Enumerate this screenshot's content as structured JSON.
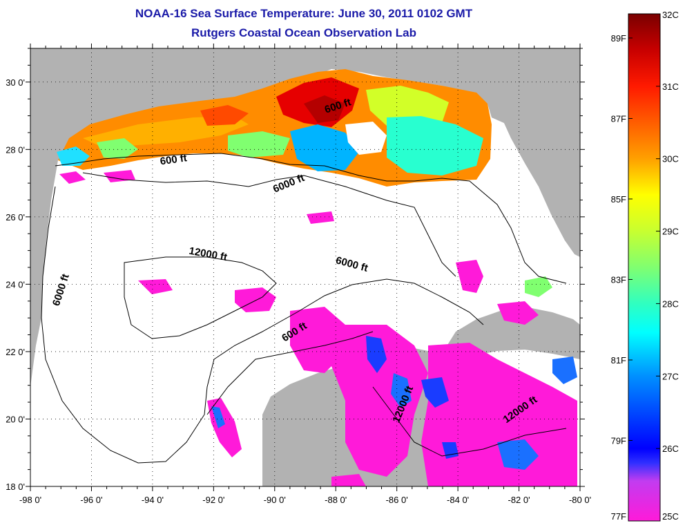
{
  "title": "NOAA-16 Sea Surface Temperature:  June 30, 2011 0102 GMT",
  "subtitle": "Rutgers Coastal Ocean Observation Lab",
  "map": {
    "lon_range": [
      -98,
      -80
    ],
    "lat_range": [
      18,
      31
    ],
    "lon_ticks": [
      -98,
      -96,
      -94,
      -92,
      -90,
      -88,
      -86,
      -84,
      -82,
      -80
    ],
    "lon_tick_labels": [
      "-98 0'",
      "-96 0'",
      "-94 0'",
      "-92 0'",
      "-90 0'",
      "-88 0'",
      "-86 0'",
      "-84 0'",
      "-82 0'",
      "-80 0'"
    ],
    "lat_ticks": [
      18,
      20,
      22,
      24,
      26,
      28,
      30
    ],
    "lat_tick_labels": [
      "18 0'",
      "20 0'",
      "22 0'",
      "24 0'",
      "26 0'",
      "28 0'",
      "30 0'"
    ],
    "gridlines": "dotted",
    "land_color": "#b2b2b2",
    "no_data_color": "#ffffff",
    "contour_labels": [
      {
        "text": "600 ft",
        "lon": -93.3,
        "lat": 27.6,
        "angle": -8
      },
      {
        "text": "600 ft",
        "lon": -87.9,
        "lat": 29.2,
        "angle": -18
      },
      {
        "text": "6000 ft",
        "lon": -89.5,
        "lat": 26.9,
        "angle": -22
      },
      {
        "text": "6000 ft",
        "lon": -96.9,
        "lat": 23.8,
        "angle": -72
      },
      {
        "text": "12000 ft",
        "lon": -92.2,
        "lat": 24.8,
        "angle": 10
      },
      {
        "text": "6000 ft",
        "lon": -87.5,
        "lat": 24.5,
        "angle": 15
      },
      {
        "text": "600 ft",
        "lon": -89.3,
        "lat": 22.5,
        "angle": -32
      },
      {
        "text": "12000 ft",
        "lon": -85.7,
        "lat": 20.4,
        "angle": -68
      },
      {
        "text": "12000 ft",
        "lon": -81.9,
        "lat": 20.2,
        "angle": -35
      }
    ]
  },
  "colorbar": {
    "min_c": 25,
    "max_c": 32,
    "celsius_ticks": [
      25,
      26,
      27,
      28,
      29,
      30,
      31,
      32
    ],
    "celsius_labels": [
      "25C",
      "26C",
      "27C",
      "28C",
      "29C",
      "30C",
      "31C",
      "32C"
    ],
    "fahrenheit_ticks": [
      77,
      79,
      81,
      83,
      85,
      87,
      89
    ],
    "fahrenheit_labels": [
      "77F",
      "79F",
      "81F",
      "83F",
      "85F",
      "87F",
      "89F"
    ],
    "gradient": [
      {
        "c": 25.0,
        "color": "#ff1ad9"
      },
      {
        "c": 25.55,
        "color": "#c23cf0"
      },
      {
        "c": 25.8,
        "color": "#3030ff"
      },
      {
        "c": 26.0,
        "color": "#0000ff"
      },
      {
        "c": 27.0,
        "color": "#0090ff"
      },
      {
        "c": 27.6,
        "color": "#00ffff"
      },
      {
        "c": 28.0,
        "color": "#30ffc0"
      },
      {
        "c": 28.5,
        "color": "#80ff70"
      },
      {
        "c": 29.0,
        "color": "#c8ff30"
      },
      {
        "c": 29.5,
        "color": "#ffff00"
      },
      {
        "c": 30.0,
        "color": "#ffa000"
      },
      {
        "c": 31.0,
        "color": "#ff1a00"
      },
      {
        "c": 31.5,
        "color": "#c80000"
      },
      {
        "c": 32.0,
        "color": "#7a0000"
      }
    ]
  }
}
